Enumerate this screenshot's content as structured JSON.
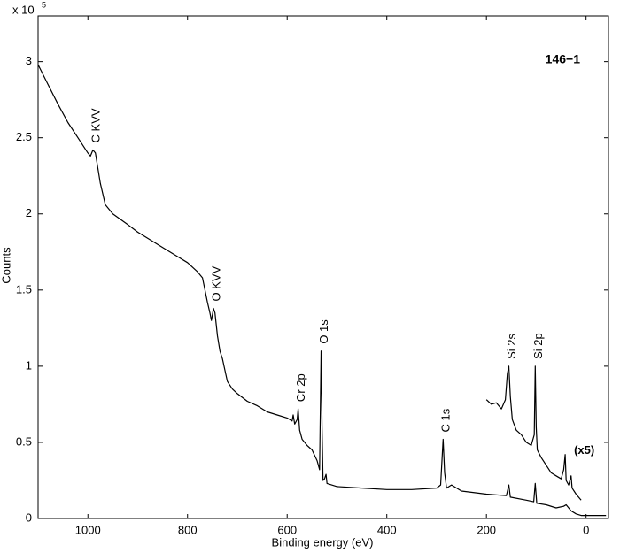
{
  "chart_data": {
    "type": "line",
    "title": "146−1",
    "xlabel": "Binding energy (eV)",
    "ylabel": "Counts",
    "y_multiplier": "x 10",
    "y_multiplier_exponent": "5",
    "xlim": [
      1100,
      -45
    ],
    "reverse_x": true,
    "ylim": [
      0,
      3.3
    ],
    "xticks": [
      1000,
      800,
      600,
      400,
      200,
      0
    ],
    "yticks": [
      0,
      0.5,
      1,
      1.5,
      2,
      2.5,
      3
    ],
    "series": [
      {
        "color": "#000000",
        "x": [
          1100,
          1080,
          1060,
          1040,
          1020,
          1000,
          995,
          990,
          985,
          975,
          965,
          950,
          920,
          900,
          880,
          860,
          840,
          820,
          800,
          780,
          770,
          765,
          760,
          755,
          752,
          748,
          745,
          740,
          735,
          730,
          720,
          710,
          700,
          680,
          660,
          640,
          620,
          600,
          590,
          588,
          585,
          580,
          578,
          575,
          570,
          560,
          550,
          540,
          535,
          532,
          530,
          528,
          525,
          522,
          520,
          500,
          450,
          400,
          350,
          300,
          292,
          287,
          284,
          280,
          270,
          250,
          200,
          160,
          155,
          152,
          120,
          105,
          102,
          99,
          80,
          60,
          45,
          40,
          30,
          20,
          10,
          0,
          -40
        ],
        "values": [
          2.98,
          2.85,
          2.72,
          2.6,
          2.5,
          2.4,
          2.38,
          2.42,
          2.4,
          2.2,
          2.06,
          2.0,
          1.93,
          1.88,
          1.84,
          1.8,
          1.76,
          1.72,
          1.68,
          1.62,
          1.58,
          1.5,
          1.42,
          1.35,
          1.3,
          1.38,
          1.35,
          1.2,
          1.1,
          1.05,
          0.9,
          0.85,
          0.82,
          0.77,
          0.74,
          0.7,
          0.68,
          0.66,
          0.64,
          0.68,
          0.62,
          0.65,
          0.72,
          0.58,
          0.52,
          0.48,
          0.45,
          0.38,
          0.32,
          1.1,
          0.6,
          0.25,
          0.26,
          0.29,
          0.23,
          0.21,
          0.2,
          0.19,
          0.19,
          0.2,
          0.22,
          0.52,
          0.3,
          0.2,
          0.22,
          0.18,
          0.16,
          0.15,
          0.22,
          0.14,
          0.12,
          0.11,
          0.23,
          0.1,
          0.09,
          0.07,
          0.08,
          0.09,
          0.05,
          0.03,
          0.02,
          0.02,
          0.02
        ]
      },
      {
        "color": "#000000",
        "x": [
          200,
          190,
          180,
          170,
          162,
          158,
          155,
          152,
          148,
          140,
          130,
          120,
          110,
          104,
          102,
          100,
          98,
          90,
          80,
          70,
          60,
          50,
          45,
          42,
          40,
          35,
          30,
          28,
          20,
          10
        ],
        "values": [
          0.78,
          0.75,
          0.76,
          0.72,
          0.78,
          0.95,
          1.0,
          0.8,
          0.65,
          0.58,
          0.55,
          0.5,
          0.48,
          0.55,
          1.0,
          0.6,
          0.45,
          0.4,
          0.35,
          0.3,
          0.28,
          0.26,
          0.32,
          0.42,
          0.25,
          0.22,
          0.28,
          0.2,
          0.16,
          0.12
        ]
      }
    ],
    "annotations": [
      {
        "text": "C KVV",
        "x": 990,
        "series": 0,
        "bold": false
      },
      {
        "text": "O KVV",
        "x": 748,
        "series": 0,
        "bold": false
      },
      {
        "text": "Cr 2p",
        "x": 578,
        "series": 0,
        "bold": false
      },
      {
        "text": "O 1s",
        "x": 532,
        "series": 0,
        "bold": false
      },
      {
        "text": "C 1s",
        "x": 287,
        "series": 0,
        "bold": false
      },
      {
        "text": "Si 2s",
        "x": 155,
        "series": 1,
        "bold": false
      },
      {
        "text": "Si 2p",
        "x": 102,
        "series": 1,
        "bold": false
      },
      {
        "text": "(x5)",
        "x": 42,
        "series": 1,
        "bold": true
      }
    ]
  }
}
